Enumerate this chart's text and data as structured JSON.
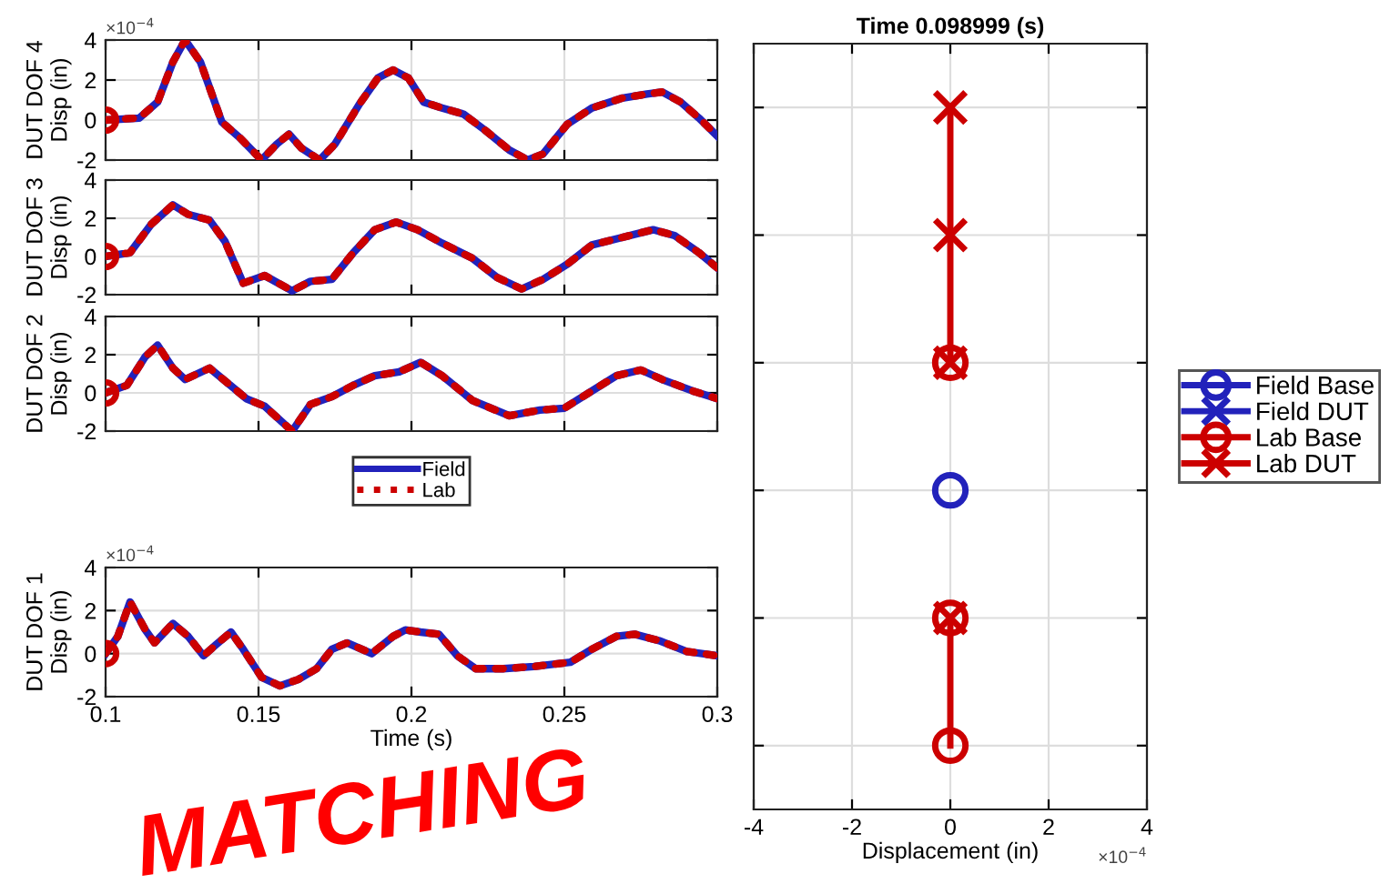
{
  "chart_data": [
    {
      "type": "line",
      "ylabel": "DUT DOF 4\nDisp (in)",
      "xlim": [
        0.1,
        0.3
      ],
      "ylim": [
        -2,
        4
      ],
      "xticks": [
        0.1,
        0.15,
        0.2,
        0.25,
        0.3
      ],
      "yticks": [
        -2,
        0,
        2,
        4
      ],
      "tick_labels": "y",
      "grid": true,
      "annotations": [
        "×10$^{−4}$"
      ],
      "series": [
        {
          "color": "#2222bb",
          "line_style": "solid",
          "x": [
            0.1,
            0.111,
            0.117,
            0.122,
            0.126,
            0.131,
            0.138,
            0.144,
            0.151,
            0.156,
            0.16,
            0.164,
            0.17,
            0.175,
            0.183,
            0.189,
            0.194,
            0.199,
            0.204,
            0.21,
            0.217,
            0.224,
            0.232,
            0.238,
            0.243,
            0.251,
            0.259,
            0.269,
            0.277,
            0.282,
            0.288,
            0.294,
            0.3
          ],
          "values": [
            0,
            0.1,
            0.9,
            2.9,
            4.0,
            2.9,
            -0.1,
            -0.9,
            -2.0,
            -1.2,
            -0.7,
            -1.4,
            -2.0,
            -1.2,
            0.8,
            2.1,
            2.5,
            2.1,
            0.9,
            0.6,
            0.3,
            -0.5,
            -1.5,
            -2.0,
            -1.7,
            -0.2,
            0.6,
            1.1,
            1.3,
            1.4,
            0.9,
            0.1,
            -0.8
          ]
        },
        {
          "color": "#cc0000",
          "line_style": "dotted",
          "x": [
            0.1,
            0.111,
            0.117,
            0.122,
            0.126,
            0.131,
            0.138,
            0.144,
            0.151,
            0.156,
            0.16,
            0.164,
            0.17,
            0.175,
            0.183,
            0.189,
            0.194,
            0.199,
            0.204,
            0.21,
            0.217,
            0.224,
            0.232,
            0.238,
            0.243,
            0.251,
            0.259,
            0.269,
            0.277,
            0.282,
            0.288,
            0.294,
            0.3
          ],
          "values": [
            0,
            0.1,
            0.9,
            2.9,
            4.0,
            2.9,
            -0.1,
            -0.9,
            -2.0,
            -1.2,
            -0.7,
            -1.4,
            -2.0,
            -1.2,
            0.8,
            2.1,
            2.5,
            2.1,
            0.9,
            0.6,
            0.3,
            -0.5,
            -1.5,
            -2.0,
            -1.7,
            -0.2,
            0.6,
            1.1,
            1.3,
            1.4,
            0.9,
            0.1,
            -0.8
          ]
        },
        {
          "type": "scatter",
          "marker": "circle",
          "color": "#cc0000",
          "x": [
            0.1
          ],
          "values": [
            0
          ]
        }
      ]
    },
    {
      "type": "line",
      "ylabel": "DUT DOF 3\nDisp (in)",
      "xlim": [
        0.1,
        0.3
      ],
      "ylim": [
        -2,
        4
      ],
      "xticks": [
        0.1,
        0.15,
        0.2,
        0.25,
        0.3
      ],
      "yticks": [
        -2,
        0,
        2,
        4
      ],
      "tick_labels": "y",
      "grid": true,
      "series": [
        {
          "color": "#2222bb",
          "line_style": "solid",
          "x": [
            0.1,
            0.108,
            0.115,
            0.122,
            0.127,
            0.134,
            0.139,
            0.145,
            0.152,
            0.161,
            0.167,
            0.174,
            0.181,
            0.188,
            0.195,
            0.202,
            0.21,
            0.22,
            0.228,
            0.236,
            0.243,
            0.251,
            0.259,
            0.269,
            0.279,
            0.286,
            0.294,
            0.3
          ],
          "values": [
            0,
            0.2,
            1.7,
            2.7,
            2.2,
            1.9,
            0.8,
            -1.4,
            -1.0,
            -1.8,
            -1.3,
            -1.2,
            0.2,
            1.4,
            1.8,
            1.4,
            0.7,
            -0.1,
            -1.1,
            -1.7,
            -1.2,
            -0.4,
            0.6,
            1.0,
            1.4,
            1.1,
            0.2,
            -0.6
          ]
        },
        {
          "color": "#cc0000",
          "line_style": "dotted",
          "x": [
            0.1,
            0.108,
            0.115,
            0.122,
            0.127,
            0.134,
            0.139,
            0.145,
            0.152,
            0.161,
            0.167,
            0.174,
            0.181,
            0.188,
            0.195,
            0.202,
            0.21,
            0.22,
            0.228,
            0.236,
            0.243,
            0.251,
            0.259,
            0.269,
            0.279,
            0.286,
            0.294,
            0.3
          ],
          "values": [
            0,
            0.2,
            1.7,
            2.7,
            2.2,
            1.9,
            0.8,
            -1.4,
            -1.0,
            -1.8,
            -1.3,
            -1.2,
            0.2,
            1.4,
            1.8,
            1.4,
            0.7,
            -0.1,
            -1.1,
            -1.7,
            -1.2,
            -0.4,
            0.6,
            1.0,
            1.4,
            1.1,
            0.2,
            -0.6
          ]
        },
        {
          "type": "scatter",
          "marker": "circle",
          "color": "#cc0000",
          "x": [
            0.1
          ],
          "values": [
            0
          ]
        }
      ]
    },
    {
      "type": "line",
      "ylabel": "DUT DOF 2\nDisp (in)",
      "xlim": [
        0.1,
        0.3
      ],
      "ylim": [
        -2,
        4
      ],
      "xticks": [
        0.1,
        0.15,
        0.2,
        0.25,
        0.3
      ],
      "yticks": [
        -2,
        0,
        2,
        4
      ],
      "tick_labels": "y",
      "grid": true,
      "legend": "bottom",
      "series": [
        {
          "name": "Field",
          "color": "#2222bb",
          "line_style": "solid",
          "x": [
            0.1,
            0.107,
            0.113,
            0.117,
            0.122,
            0.126,
            0.134,
            0.14,
            0.146,
            0.152,
            0.161,
            0.167,
            0.174,
            0.181,
            0.188,
            0.196,
            0.203,
            0.21,
            0.22,
            0.232,
            0.242,
            0.25,
            0.259,
            0.267,
            0.275,
            0.282,
            0.292,
            0.3
          ],
          "values": [
            0,
            0.4,
            1.9,
            2.5,
            1.3,
            0.7,
            1.3,
            0.5,
            -0.3,
            -0.7,
            -2.0,
            -0.6,
            -0.2,
            0.4,
            0.9,
            1.1,
            1.6,
            0.9,
            -0.4,
            -1.2,
            -0.9,
            -0.8,
            0.1,
            0.9,
            1.2,
            0.7,
            0.1,
            -0.3
          ]
        },
        {
          "name": "Lab",
          "color": "#cc0000",
          "line_style": "dotted",
          "x": [
            0.1,
            0.107,
            0.113,
            0.117,
            0.122,
            0.126,
            0.134,
            0.14,
            0.146,
            0.152,
            0.161,
            0.167,
            0.174,
            0.181,
            0.188,
            0.196,
            0.203,
            0.21,
            0.22,
            0.232,
            0.242,
            0.25,
            0.259,
            0.267,
            0.275,
            0.282,
            0.292,
            0.3
          ],
          "values": [
            0,
            0.4,
            1.9,
            2.5,
            1.3,
            0.7,
            1.3,
            0.5,
            -0.3,
            -0.7,
            -2.0,
            -0.6,
            -0.2,
            0.4,
            0.9,
            1.1,
            1.6,
            0.9,
            -0.4,
            -1.2,
            -0.9,
            -0.8,
            0.1,
            0.9,
            1.2,
            0.7,
            0.1,
            -0.3
          ]
        },
        {
          "type": "scatter",
          "marker": "circle",
          "color": "#cc0000",
          "x": [
            0.1
          ],
          "values": [
            0
          ]
        }
      ]
    },
    {
      "type": "line",
      "ylabel": "DUT DOF 1\nDisp (in)",
      "xlabel": "Time (s)",
      "xlim": [
        0.1,
        0.3
      ],
      "ylim": [
        -2,
        4
      ],
      "xticks": [
        0.1,
        0.15,
        0.2,
        0.25,
        0.3
      ],
      "yticks": [
        -2,
        0,
        2,
        4
      ],
      "grid": true,
      "annotations": [
        "×10$^{−4}$",
        "MATCHING"
      ],
      "series": [
        {
          "color": "#2222bb",
          "line_style": "solid",
          "x": [
            0.1,
            0.104,
            0.108,
            0.113,
            0.116,
            0.122,
            0.127,
            0.132,
            0.136,
            0.141,
            0.145,
            0.151,
            0.157,
            0.163,
            0.169,
            0.174,
            0.179,
            0.187,
            0.194,
            0.198,
            0.203,
            0.209,
            0.215,
            0.221,
            0.23,
            0.24,
            0.252,
            0.259,
            0.267,
            0.273,
            0.281,
            0.29,
            0.3
          ],
          "values": [
            0,
            0.8,
            2.4,
            1.1,
            0.5,
            1.4,
            0.8,
            -0.1,
            0.4,
            1.0,
            0.2,
            -1.1,
            -1.5,
            -1.2,
            -0.7,
            0.2,
            0.5,
            0,
            0.8,
            1.1,
            1.0,
            0.9,
            -0.1,
            -0.7,
            -0.7,
            -0.6,
            -0.4,
            0.2,
            0.8,
            0.9,
            0.6,
            0.1,
            -0.1
          ]
        },
        {
          "color": "#cc0000",
          "line_style": "dotted",
          "x": [
            0.1,
            0.104,
            0.108,
            0.113,
            0.116,
            0.122,
            0.127,
            0.132,
            0.136,
            0.141,
            0.145,
            0.151,
            0.157,
            0.163,
            0.169,
            0.174,
            0.179,
            0.187,
            0.194,
            0.198,
            0.203,
            0.209,
            0.215,
            0.221,
            0.23,
            0.24,
            0.252,
            0.259,
            0.267,
            0.273,
            0.281,
            0.29,
            0.3
          ],
          "values": [
            0,
            0.8,
            2.4,
            1.1,
            0.5,
            1.4,
            0.8,
            -0.1,
            0.4,
            1.0,
            0.2,
            -1.1,
            -1.5,
            -1.2,
            -0.7,
            0.2,
            0.5,
            0,
            0.8,
            1.1,
            1.0,
            0.9,
            -0.1,
            -0.7,
            -0.7,
            -0.6,
            -0.4,
            0.2,
            0.8,
            0.9,
            0.6,
            0.1,
            -0.1
          ]
        },
        {
          "type": "scatter",
          "marker": "circle",
          "color": "#cc0000",
          "x": [
            0.1
          ],
          "values": [
            0
          ]
        }
      ]
    },
    {
      "type": "line",
      "orientation": "horizontal",
      "title": "Time 0.098999 (s)",
      "xlabel": "Displacement (in)",
      "xlim": [
        -4,
        4
      ],
      "xticks": [
        -4,
        -2,
        0,
        2,
        4
      ],
      "tick_labels": "x",
      "grid": true,
      "legend": "right",
      "annotations": [
        "×10$^{−4}$"
      ],
      "categories": [
        null,
        null,
        null,
        null,
        null,
        null
      ],
      "series": [
        {
          "name": "Field Base",
          "color": "#2222bb",
          "marker": "circle",
          "values": [
            null,
            null,
            null,
            0,
            null,
            null
          ]
        },
        {
          "name": "Field DUT",
          "color": "#2222bb",
          "marker": "cross",
          "values": [
            null,
            null,
            null,
            null,
            null,
            null
          ]
        },
        {
          "name": "Lab Base",
          "color": "#cc0000",
          "marker": "circle",
          "values": [
            null,
            null,
            0,
            null,
            0,
            0
          ]
        },
        {
          "name": "Lab DUT",
          "color": "#cc0000",
          "marker": "cross",
          "values": [
            0,
            0,
            0,
            null,
            0,
            null
          ]
        }
      ]
    }
  ]
}
